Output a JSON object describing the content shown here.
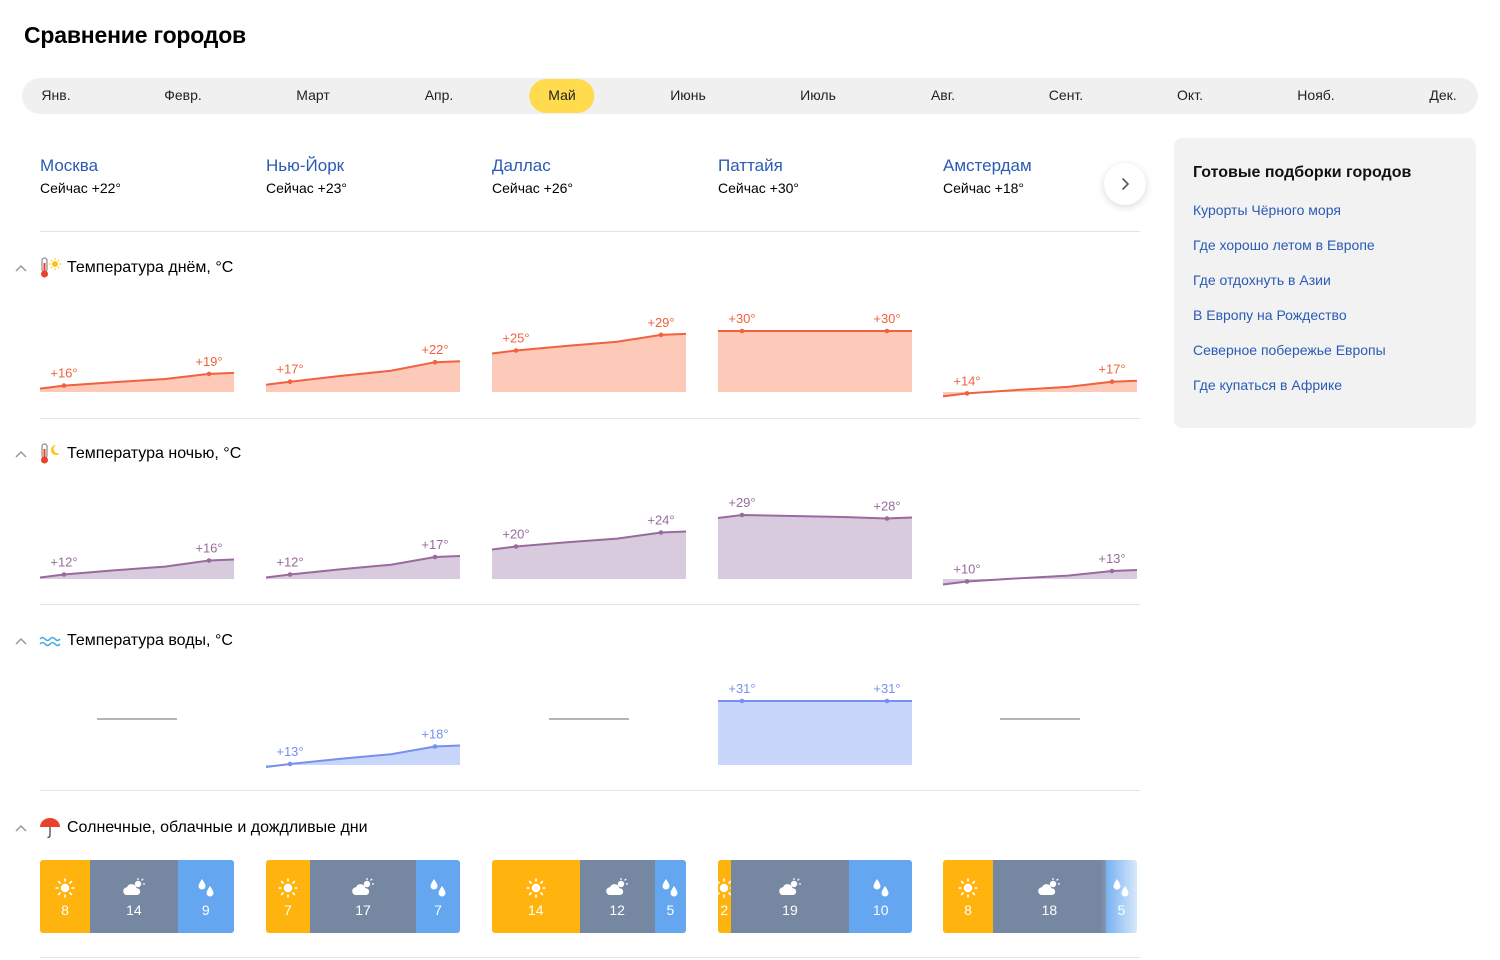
{
  "page": {
    "title": "Сравнение городов"
  },
  "months": [
    {
      "label": "Янв.",
      "active": false
    },
    {
      "label": "Февр.",
      "active": false
    },
    {
      "label": "Март",
      "active": false
    },
    {
      "label": "Апр.",
      "active": false
    },
    {
      "label": "Май",
      "active": true
    },
    {
      "label": "Июнь",
      "active": false
    },
    {
      "label": "Июль",
      "active": false
    },
    {
      "label": "Авг.",
      "active": false
    },
    {
      "label": "Сент.",
      "active": false
    },
    {
      "label": "Окт.",
      "active": false
    },
    {
      "label": "Нояб.",
      "active": false
    },
    {
      "label": "Дек.",
      "active": false
    }
  ],
  "cities": [
    {
      "name": "Москва",
      "now": "Сейчас +22°"
    },
    {
      "name": "Нью-Йорк",
      "now": "Сейчас +23°"
    },
    {
      "name": "Даллас",
      "now": "Сейчас +26°"
    },
    {
      "name": "Паттайя",
      "now": "Сейчас +30°"
    },
    {
      "name": "Амстердам",
      "now": "Сейчас +18°"
    }
  ],
  "sections": {
    "day": {
      "title": "Температура днём, °C",
      "icon": "thermometer-sun-icon"
    },
    "night": {
      "title": "Температура ночью, °C",
      "icon": "thermometer-moon-icon"
    },
    "water": {
      "title": "Температура воды, °C",
      "icon": "water-waves-icon"
    },
    "days": {
      "title": "Солнечные, облачные и дождливые дни",
      "icon": "umbrella-icon"
    }
  },
  "chart_data": [
    {
      "type": "area",
      "name": "day",
      "color": "#f0623f",
      "fill": "#fdc9b8",
      "series": [
        {
          "start": 16,
          "end": 19,
          "start_label": "+16°",
          "end_label": "+19°"
        },
        {
          "start": 17,
          "end": 22,
          "start_label": "+17°",
          "end_label": "+22°"
        },
        {
          "start": 25,
          "end": 29,
          "start_label": "+25°",
          "end_label": "+29°"
        },
        {
          "start": 30,
          "end": 30,
          "start_label": "+30°",
          "end_label": "+30°"
        },
        {
          "start": 14,
          "end": 17,
          "start_label": "+14°",
          "end_label": "+17°"
        }
      ]
    },
    {
      "type": "area",
      "name": "night",
      "color": "#9a6a9e",
      "fill": "#d8cbdd",
      "series": [
        {
          "start": 12,
          "end": 16,
          "start_label": "+12°",
          "end_label": "+16°"
        },
        {
          "start": 12,
          "end": 17,
          "start_label": "+12°",
          "end_label": "+17°"
        },
        {
          "start": 20,
          "end": 24,
          "start_label": "+20°",
          "end_label": "+24°"
        },
        {
          "start": 29,
          "end": 28,
          "start_label": "+29°",
          "end_label": "+28°"
        },
        {
          "start": 10,
          "end": 13,
          "start_label": "+10°",
          "end_label": "+13°"
        }
      ]
    },
    {
      "type": "area",
      "name": "water",
      "color": "#7590ef",
      "fill": "#c8d6fb",
      "series": [
        {
          "start": null,
          "end": null,
          "start_label": "",
          "end_label": ""
        },
        {
          "start": 13,
          "end": 18,
          "start_label": "+13°",
          "end_label": "+18°"
        },
        {
          "start": null,
          "end": null,
          "start_label": "",
          "end_label": ""
        },
        {
          "start": 31,
          "end": 31,
          "start_label": "+31°",
          "end_label": "+31°"
        },
        {
          "start": null,
          "end": null,
          "start_label": "",
          "end_label": ""
        }
      ]
    },
    {
      "type": "bar",
      "name": "weather-days",
      "categories": [
        "sunny",
        "cloudy",
        "rainy"
      ],
      "colors": [
        "#ffb30f",
        "#7587a1",
        "#64a6ef"
      ],
      "series": [
        {
          "values": [
            8,
            14,
            9
          ]
        },
        {
          "values": [
            7,
            17,
            7
          ]
        },
        {
          "values": [
            14,
            12,
            5
          ]
        },
        {
          "values": [
            2,
            19,
            10
          ]
        },
        {
          "values": [
            8,
            18,
            5
          ]
        }
      ]
    }
  ],
  "sidebar": {
    "title": "Готовые подборки городов",
    "links": [
      "Курорты Чёрного моря",
      "Где хорошо летом в Европе",
      "Где отдохнуть в Азии",
      "В Европу на Рождество",
      "Северное побережье Европы",
      "Где купаться в Африке"
    ]
  }
}
